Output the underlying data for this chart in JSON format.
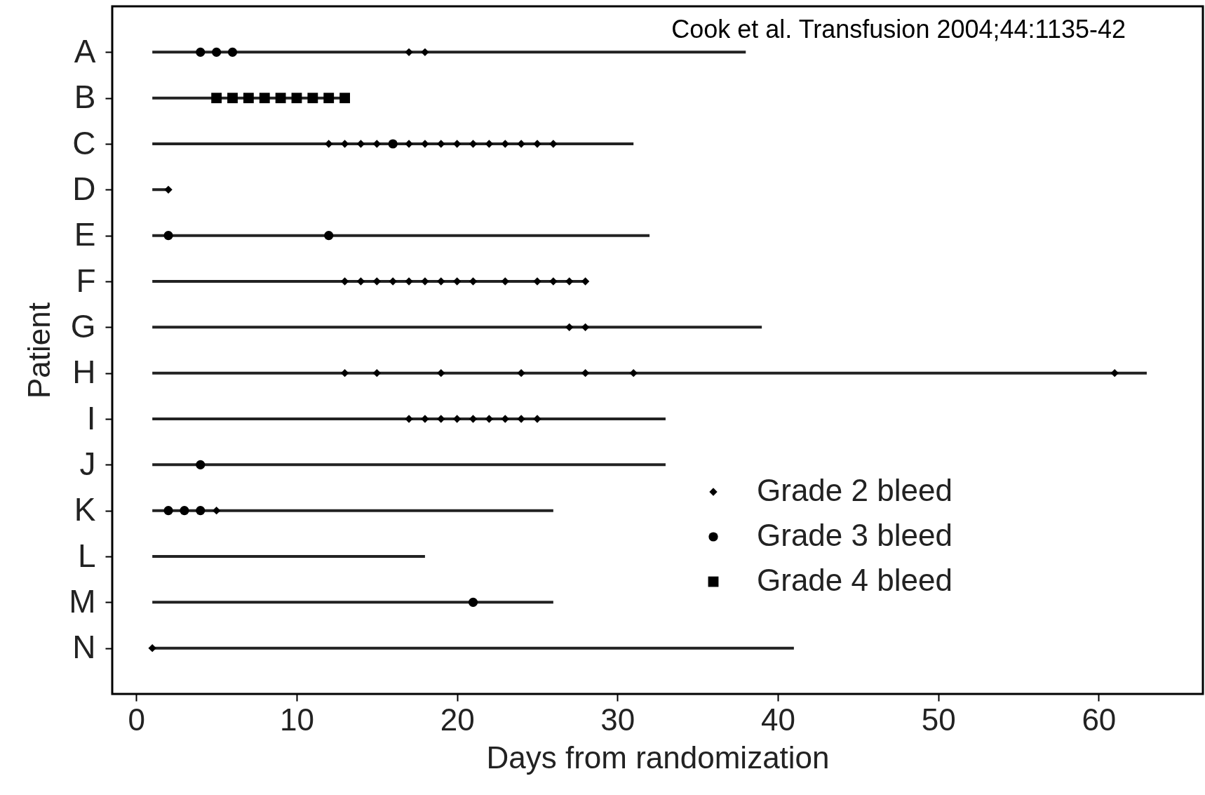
{
  "chart_data": {
    "type": "bar",
    "orientation": "horizontal",
    "xlabel": "Days from randomization",
    "ylabel": "Patient",
    "annotations": [
      "Cook et al. Transfusion 2004;44:1135-42"
    ],
    "categories": [
      "A",
      "B",
      "C",
      "D",
      "E",
      "F",
      "G",
      "H",
      "I",
      "J",
      "K",
      "L",
      "M",
      "N"
    ],
    "base": [
      1,
      1,
      1,
      1,
      1,
      1,
      1,
      1,
      1,
      1,
      1,
      1,
      1,
      1
    ],
    "values": [
      37,
      12,
      30,
      1,
      31,
      27,
      38,
      62,
      32,
      32,
      25,
      17,
      25,
      40
    ],
    "color": "#222222",
    "xlim": [
      -1.5,
      66.5
    ],
    "xticks": [
      0,
      10,
      20,
      30,
      40,
      50,
      60
    ],
    "grid": false,
    "legend": "bottom right",
    "series": [
      {
        "type": "scatter",
        "name": "Grade 2 bleed",
        "marker": "diamond",
        "color": "#000000",
        "x": [
          "A",
          "A",
          "C",
          "C",
          "C",
          "C",
          "C",
          "C",
          "C",
          "C",
          "C",
          "C",
          "C",
          "C",
          "C",
          "C",
          "D",
          "F",
          "F",
          "F",
          "F",
          "F",
          "F",
          "F",
          "F",
          "F",
          "F",
          "F",
          "F",
          "F",
          "F",
          "G",
          "G",
          "H",
          "H",
          "H",
          "H",
          "H",
          "H",
          "H",
          "I",
          "I",
          "I",
          "I",
          "I",
          "I",
          "I",
          "I",
          "I",
          "K",
          "N"
        ],
        "values": [
          17,
          18,
          12,
          13,
          14,
          15,
          17,
          18,
          19,
          20,
          21,
          22,
          23,
          24,
          25,
          26,
          2,
          13,
          14,
          15,
          16,
          17,
          18,
          19,
          20,
          21,
          23,
          25,
          26,
          27,
          28,
          27,
          28,
          13,
          15,
          19,
          24,
          28,
          31,
          61,
          17,
          18,
          19,
          20,
          21,
          22,
          23,
          24,
          25,
          5,
          1
        ]
      },
      {
        "type": "scatter",
        "name": "Grade 3 bleed",
        "marker": "circle",
        "color": "#000000",
        "x": [
          "A",
          "A",
          "A",
          "C",
          "E",
          "E",
          "J",
          "K",
          "K",
          "K",
          "M"
        ],
        "values": [
          4,
          5,
          6,
          16,
          2,
          12,
          4,
          2,
          3,
          4,
          21
        ]
      },
      {
        "type": "scatter",
        "name": "Grade 4 bleed",
        "marker": "square",
        "color": "#000000",
        "x": [
          "B",
          "B",
          "B",
          "B",
          "B",
          "B",
          "B",
          "B",
          "B"
        ],
        "values": [
          5,
          6,
          7,
          8,
          9,
          10,
          11,
          12,
          13
        ]
      }
    ]
  }
}
